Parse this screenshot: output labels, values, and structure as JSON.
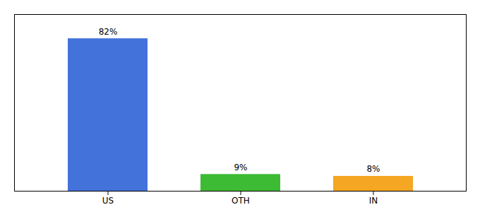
{
  "chart_data": {
    "type": "bar",
    "categories": [
      "US",
      "OTH",
      "IN"
    ],
    "values": [
      82,
      9,
      8
    ],
    "value_labels": [
      "82%",
      "9%",
      "8%"
    ],
    "colors": [
      "#4472db",
      "#3dbb35",
      "#f5a623"
    ],
    "ylim": [
      0,
      95
    ],
    "data_labels": true,
    "tick_labels": "x",
    "grid": false
  }
}
